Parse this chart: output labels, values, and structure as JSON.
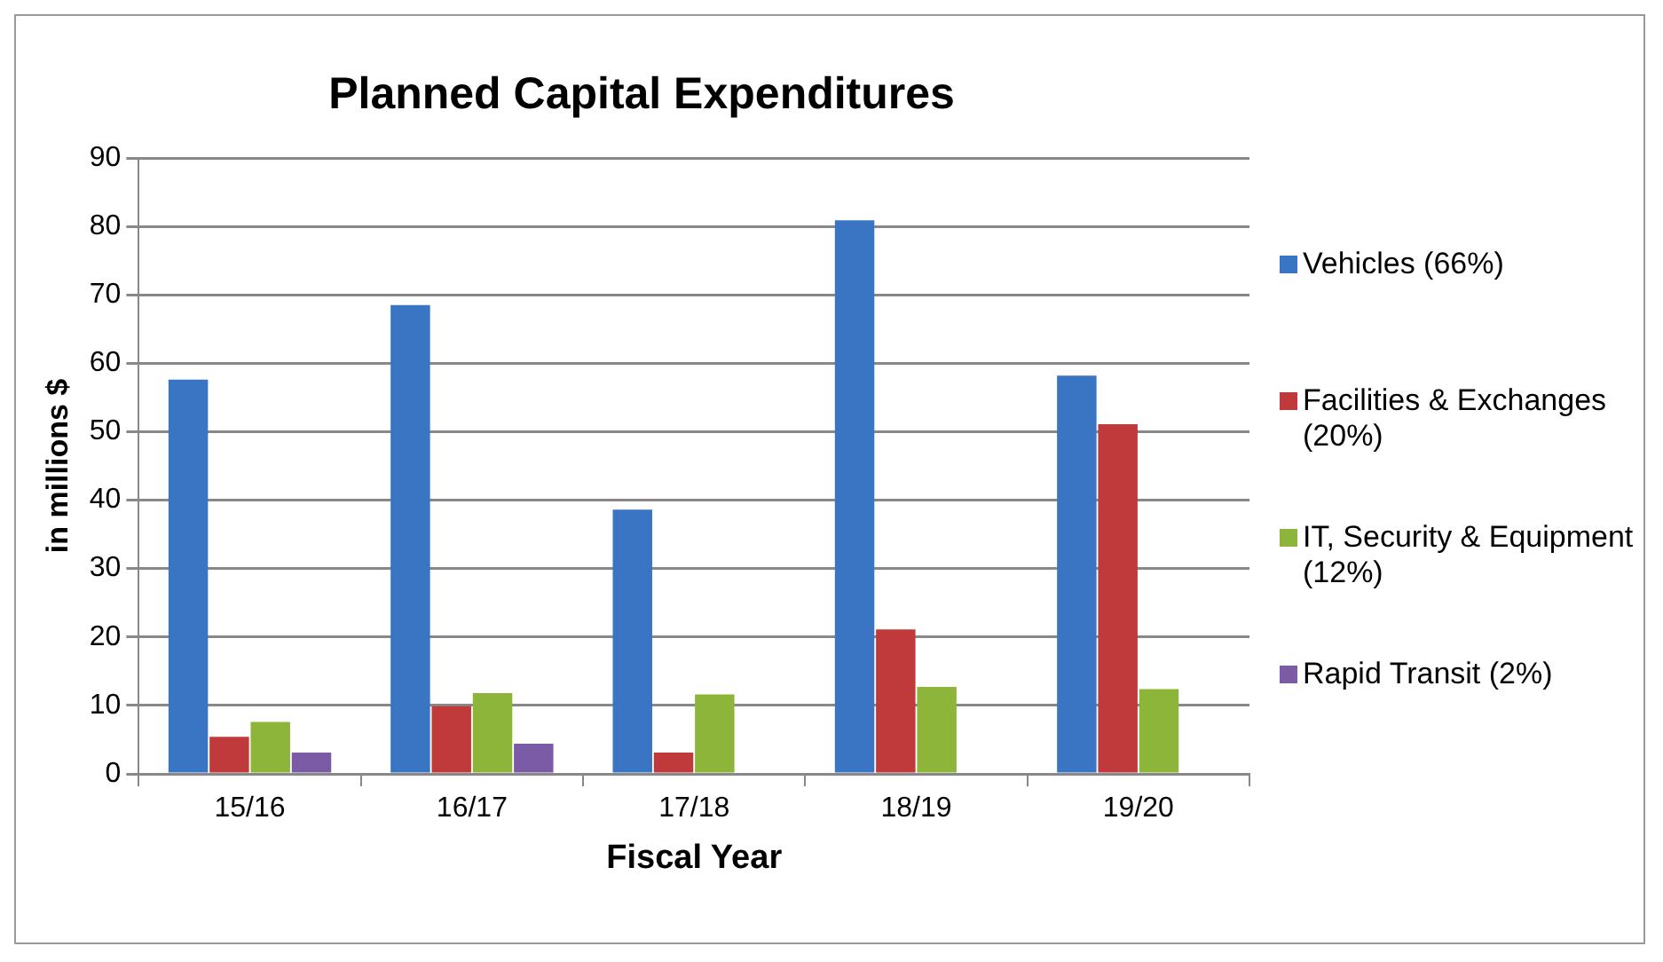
{
  "chart_data": {
    "type": "bar",
    "title": "Planned Capital Expenditures",
    "xlabel": "Fiscal Year",
    "ylabel": "in millions $",
    "categories": [
      "15/16",
      "16/17",
      "17/18",
      "18/19",
      "19/20"
    ],
    "series": [
      {
        "name": "Vehicles (66%)",
        "color": "#3a75c4",
        "values": [
          57.6,
          68.5,
          38.6,
          80.9,
          58.2
        ]
      },
      {
        "name": "Facilities & Exchanges (20%)",
        "color": "#c0393b",
        "values": [
          5.4,
          9.9,
          3.1,
          21.1,
          51.1
        ]
      },
      {
        "name": "IT, Security & Equipment (12%)",
        "color": "#8db53a",
        "values": [
          7.6,
          11.8,
          11.6,
          12.7,
          12.4
        ]
      },
      {
        "name": "Rapid Transit (2%)",
        "color": "#7b5aa6",
        "values": [
          3.1,
          4.4,
          null,
          null,
          null
        ]
      }
    ],
    "ylim": [
      0,
      90
    ],
    "yticks": [
      0,
      10,
      20,
      30,
      40,
      50,
      60,
      70,
      80,
      90
    ],
    "grid": "y",
    "legend": "right"
  }
}
